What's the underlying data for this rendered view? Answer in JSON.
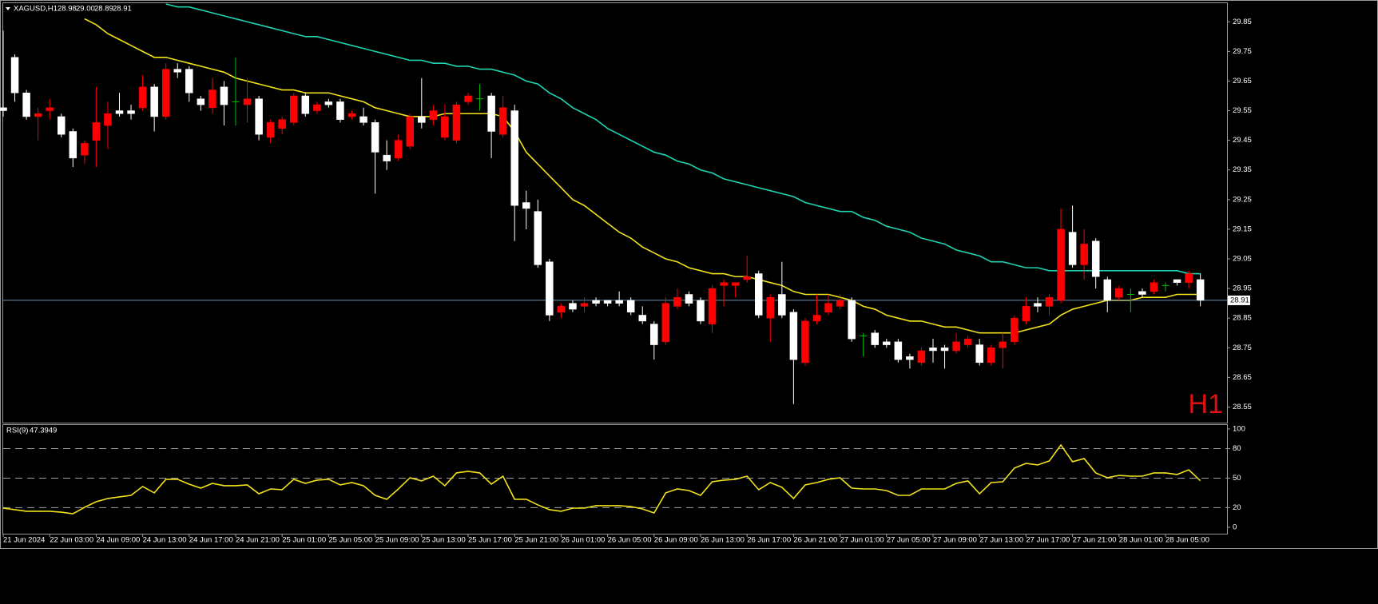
{
  "chart_data": [
    {
      "type": "candlestick",
      "title": "XAGUSD,H1",
      "last_bar_labels": [
        "28.98",
        "29.00",
        "28.89",
        "28.91"
      ],
      "annotation": "H1",
      "categories": [
        "21 Jun 2024",
        null,
        null,
        null,
        "22 Jun 03:00",
        null,
        null,
        null,
        "24 Jun 09:00",
        null,
        null,
        null,
        "24 Jun 13:00",
        null,
        null,
        null,
        "24 Jun 17:00",
        null,
        null,
        null,
        "24 Jun 21:00",
        null,
        null,
        null,
        "25 Jun 01:00",
        null,
        null,
        null,
        "25 Jun 05:00",
        null,
        null,
        null,
        "25 Jun 09:00",
        null,
        null,
        null,
        "25 Jun 13:00",
        null,
        null,
        null,
        "25 Jun 17:00",
        null,
        null,
        null,
        "25 Jun 21:00",
        null,
        null,
        null,
        "26 Jun 01:00",
        null,
        null,
        null,
        "26 Jun 05:00",
        null,
        null,
        null,
        "26 Jun 09:00",
        null,
        null,
        null,
        "26 Jun 13:00",
        null,
        null,
        null,
        "26 Jun 17:00",
        null,
        null,
        null,
        "26 Jun 21:00",
        null,
        null,
        null,
        "27 Jun 01:00",
        null,
        null,
        null,
        "27 Jun 05:00",
        null,
        null,
        null,
        "27 Jun 09:00",
        null,
        null,
        null,
        "27 Jun 13:00",
        null,
        null,
        null,
        "27 Jun 17:00",
        null,
        null,
        null,
        "27 Jun 21:00",
        null,
        null,
        null,
        "28 Jun 01:00",
        null,
        null,
        null,
        "28 Jun 05:00",
        null,
        null,
        null
      ],
      "open": [
        29.56,
        29.73,
        29.61,
        29.53,
        29.55,
        29.53,
        29.48,
        29.4,
        29.45,
        29.5,
        29.55,
        29.55,
        29.56,
        29.63,
        29.53,
        29.69,
        29.69,
        29.59,
        29.56,
        29.63,
        29.58,
        29.57,
        29.59,
        29.46,
        29.49,
        29.51,
        29.6,
        29.55,
        29.58,
        29.58,
        29.53,
        29.53,
        29.51,
        29.4,
        29.39,
        29.43,
        29.53,
        29.52,
        29.46,
        29.45,
        29.58,
        29.59,
        29.6,
        29.47,
        29.55,
        29.24,
        29.21,
        29.04,
        28.87,
        28.9,
        28.89,
        28.91,
        28.91,
        28.91,
        28.91,
        28.86,
        28.83,
        28.77,
        28.89,
        28.93,
        28.91,
        28.83,
        28.96,
        28.96,
        28.98,
        29.0,
        28.85,
        28.93,
        28.87,
        28.7,
        28.84,
        28.87,
        28.89,
        28.91,
        28.79,
        28.8,
        28.77,
        28.77,
        28.72,
        28.7,
        28.75,
        28.75,
        28.74,
        28.76,
        28.76,
        28.7,
        28.75,
        28.77,
        28.84,
        28.9,
        28.89,
        28.91,
        29.14,
        29.03,
        29.11,
        28.98,
        28.92,
        28.93,
        28.94,
        28.94,
        28.96,
        28.98,
        28.97,
        28.98
      ],
      "high": [
        29.82,
        29.74,
        29.62,
        29.56,
        29.59,
        29.54,
        29.49,
        29.45,
        29.63,
        29.58,
        29.61,
        29.57,
        29.67,
        29.64,
        29.71,
        29.71,
        29.7,
        29.6,
        29.66,
        29.65,
        29.73,
        29.66,
        29.6,
        29.52,
        29.53,
        29.61,
        29.61,
        29.58,
        29.59,
        29.59,
        29.55,
        29.56,
        29.52,
        29.45,
        29.47,
        29.54,
        29.66,
        29.57,
        29.57,
        29.58,
        29.61,
        29.64,
        29.61,
        29.6,
        29.57,
        29.28,
        29.25,
        29.05,
        28.9,
        28.91,
        28.92,
        28.92,
        28.91,
        28.94,
        28.92,
        28.89,
        28.84,
        28.92,
        28.95,
        28.94,
        28.92,
        28.96,
        28.98,
        28.97,
        29.06,
        29.01,
        28.93,
        29.04,
        28.88,
        28.85,
        28.93,
        28.93,
        28.93,
        28.92,
        28.8,
        28.81,
        28.78,
        28.78,
        28.73,
        28.75,
        28.78,
        28.76,
        28.8,
        28.79,
        28.78,
        28.76,
        28.8,
        28.86,
        28.92,
        28.92,
        28.93,
        29.22,
        29.23,
        29.15,
        29.12,
        28.99,
        28.96,
        28.95,
        28.95,
        28.98,
        28.97,
        28.98,
        29.01,
        29.0
      ],
      "low": [
        29.53,
        29.58,
        29.52,
        29.45,
        29.52,
        29.46,
        29.36,
        29.37,
        29.36,
        29.42,
        29.53,
        29.52,
        29.55,
        29.48,
        29.52,
        29.66,
        29.58,
        29.55,
        29.54,
        29.5,
        29.5,
        29.51,
        29.45,
        29.44,
        29.47,
        29.5,
        29.53,
        29.54,
        29.56,
        29.51,
        29.52,
        29.5,
        29.27,
        29.35,
        29.38,
        29.42,
        29.49,
        29.5,
        29.45,
        29.44,
        29.57,
        29.55,
        29.39,
        29.46,
        29.11,
        29.15,
        29.02,
        28.84,
        28.85,
        28.87,
        28.87,
        28.89,
        28.89,
        28.89,
        28.86,
        28.83,
        28.71,
        28.76,
        28.88,
        28.89,
        28.83,
        28.8,
        28.89,
        28.92,
        28.97,
        28.85,
        28.77,
        28.85,
        28.56,
        28.69,
        28.83,
        28.86,
        28.88,
        28.77,
        28.72,
        28.75,
        28.75,
        28.7,
        28.68,
        28.69,
        28.7,
        28.68,
        28.73,
        28.75,
        28.69,
        28.69,
        28.68,
        28.76,
        28.83,
        28.87,
        28.86,
        28.9,
        29.02,
        28.98,
        28.95,
        28.87,
        28.91,
        28.87,
        28.92,
        28.93,
        28.94,
        28.96,
        28.95,
        28.89
      ],
      "close": [
        29.55,
        29.61,
        29.53,
        29.54,
        29.56,
        29.47,
        29.39,
        29.44,
        29.51,
        29.54,
        29.54,
        29.54,
        29.63,
        29.53,
        29.69,
        29.68,
        29.61,
        29.57,
        29.62,
        29.57,
        29.58,
        29.59,
        29.47,
        29.51,
        29.52,
        29.6,
        29.54,
        29.57,
        29.57,
        29.52,
        29.54,
        29.51,
        29.41,
        29.38,
        29.45,
        29.53,
        29.51,
        29.55,
        29.53,
        29.57,
        29.6,
        29.59,
        29.48,
        29.56,
        29.23,
        29.22,
        29.03,
        28.86,
        28.89,
        28.88,
        28.9,
        28.9,
        28.9,
        28.9,
        28.87,
        28.84,
        28.76,
        28.9,
        28.92,
        28.9,
        28.84,
        28.95,
        28.97,
        28.97,
        28.99,
        28.86,
        28.92,
        28.86,
        28.71,
        28.84,
        28.86,
        28.9,
        28.91,
        28.78,
        28.79,
        28.76,
        28.76,
        28.71,
        28.71,
        28.74,
        28.74,
        28.74,
        28.77,
        28.78,
        28.7,
        28.75,
        28.77,
        28.85,
        28.89,
        28.89,
        28.92,
        29.15,
        29.03,
        29.1,
        28.99,
        28.91,
        28.95,
        28.93,
        28.93,
        28.97,
        28.96,
        28.97,
        29.0,
        28.91
      ],
      "up_color": "#ff0000",
      "down_color": "#ffffff",
      "doji_color": "#00c000",
      "lines": [
        {
          "color": "#f2e21a",
          "values": [
            null,
            null,
            null,
            null,
            null,
            null,
            null,
            29.86,
            29.84,
            29.81,
            29.79,
            29.77,
            29.75,
            29.73,
            29.73,
            29.72,
            29.71,
            29.7,
            29.69,
            29.68,
            29.66,
            29.65,
            29.64,
            29.63,
            29.62,
            29.62,
            29.61,
            29.61,
            29.61,
            29.6,
            29.59,
            29.58,
            29.56,
            29.55,
            29.54,
            29.53,
            29.53,
            29.53,
            29.54,
            29.54,
            29.54,
            29.54,
            29.54,
            29.53,
            29.48,
            29.41,
            29.37,
            29.33,
            29.29,
            29.25,
            29.23,
            29.2,
            29.17,
            29.14,
            29.12,
            29.09,
            29.07,
            29.05,
            29.04,
            29.02,
            29.01,
            29.0,
            29.0,
            28.99,
            28.99,
            28.98,
            28.97,
            28.96,
            28.94,
            28.93,
            28.93,
            28.93,
            28.92,
            28.91,
            28.89,
            28.88,
            28.86,
            28.85,
            28.84,
            28.84,
            28.83,
            28.82,
            28.82,
            28.81,
            28.8,
            28.8,
            28.8,
            28.8,
            28.81,
            28.82,
            28.83,
            28.86,
            28.88,
            28.89,
            28.9,
            28.91,
            28.91,
            28.91,
            28.92,
            28.92,
            28.92,
            28.93,
            28.93,
            28.93
          ]
        },
        {
          "color": "#1fd3b0",
          "values": [
            null,
            null,
            null,
            null,
            null,
            null,
            null,
            null,
            null,
            null,
            null,
            null,
            null,
            null,
            29.91,
            29.9,
            29.9,
            29.89,
            29.88,
            29.87,
            29.86,
            29.85,
            29.84,
            29.83,
            29.82,
            29.81,
            29.8,
            29.8,
            29.79,
            29.78,
            29.77,
            29.76,
            29.75,
            29.74,
            29.73,
            29.72,
            29.72,
            29.71,
            29.71,
            29.7,
            29.7,
            29.69,
            29.69,
            29.68,
            29.67,
            29.65,
            29.64,
            29.61,
            29.59,
            29.56,
            29.54,
            29.52,
            29.49,
            29.47,
            29.45,
            29.43,
            29.41,
            29.4,
            29.38,
            29.37,
            29.35,
            29.34,
            29.32,
            29.31,
            29.3,
            29.29,
            29.28,
            29.27,
            29.26,
            29.24,
            29.23,
            29.22,
            29.21,
            29.21,
            29.19,
            29.18,
            29.16,
            29.15,
            29.14,
            29.12,
            29.11,
            29.1,
            29.08,
            29.07,
            29.06,
            29.04,
            29.04,
            29.03,
            29.02,
            29.02,
            29.01,
            29.01,
            29.01,
            29.01,
            29.01,
            29.01,
            29.01,
            29.01,
            29.01,
            29.01,
            29.01,
            29.01,
            29.0,
            29.0
          ]
        }
      ],
      "current_price": 28.91,
      "current_price_color": "#6a8fae",
      "ylim": [
        28.5,
        29.91
      ],
      "yticks": [
        29.85,
        29.75,
        29.65,
        29.55,
        29.45,
        29.35,
        29.25,
        29.15,
        29.05,
        28.95,
        28.85,
        28.75,
        28.65,
        28.55
      ]
    },
    {
      "type": "line",
      "title": "RSI(9)",
      "color": "#f2e21a",
      "values": [
        19.5,
        17.9,
        16.3,
        16.3,
        16.3,
        15.4,
        13.8,
        20.3,
        26.0,
        29.3,
        30.9,
        32.5,
        41.5,
        35.0,
        48.8,
        48.8,
        43.9,
        39.8,
        44.7,
        42.3,
        42.3,
        43.1,
        34.1,
        39.0,
        38.2,
        48.8,
        44.7,
        48.0,
        48.8,
        43.1,
        45.5,
        42.3,
        32.5,
        28.5,
        39.0,
        50.4,
        47.2,
        52.0,
        42.3,
        55.3,
        56.9,
        55.3,
        43.9,
        52.0,
        28.5,
        28.5,
        22.8,
        17.9,
        16.3,
        19.5,
        19.5,
        22.0,
        22.0,
        22.0,
        21.1,
        18.7,
        14.6,
        35.0,
        39.0,
        37.4,
        32.5,
        46.3,
        48.0,
        48.8,
        52.0,
        38.2,
        45.5,
        40.7,
        29.3,
        43.1,
        45.5,
        48.8,
        50.4,
        39.8,
        39.0,
        39.0,
        37.4,
        32.5,
        32.5,
        39.0,
        39.0,
        39.0,
        44.7,
        47.2,
        34.1,
        45.5,
        46.3,
        60.2,
        65.0,
        63.4,
        67.5,
        83.7,
        66.7,
        69.9,
        55.3,
        50.4,
        52.8,
        52.0,
        52.0,
        55.3,
        55.3,
        53.7,
        58.5,
        47.3949
      ],
      "levels": [
        80,
        50,
        20
      ],
      "ylim": [
        -6.5,
        104
      ],
      "yticks": [
        100,
        80,
        50,
        20,
        0
      ]
    }
  ]
}
